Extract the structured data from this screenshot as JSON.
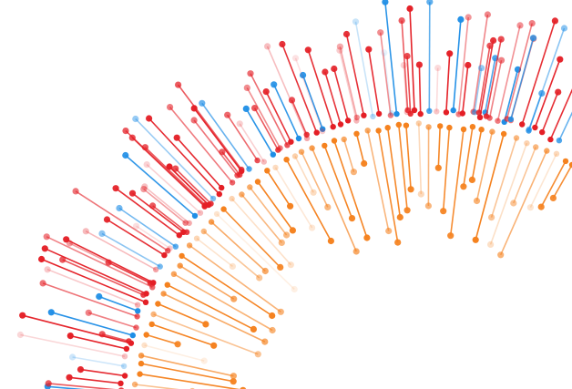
{
  "artwork": {
    "kind": "radial lollipop burst",
    "background": "#ffffff",
    "colors": {
      "blue": "#1f8ee6",
      "red": "#e41f26",
      "orange": "#f5821f"
    },
    "outer_ring": {
      "direction": "outward",
      "color_sequence": [
        "red",
        "red",
        "blue",
        "red",
        "red",
        "blue",
        "red",
        "red",
        "red",
        "blue",
        "red",
        "red",
        "blue",
        "red",
        "red",
        "red"
      ]
    },
    "inner_ring": {
      "direction": "inward",
      "color_sequence": [
        "orange"
      ]
    }
  }
}
